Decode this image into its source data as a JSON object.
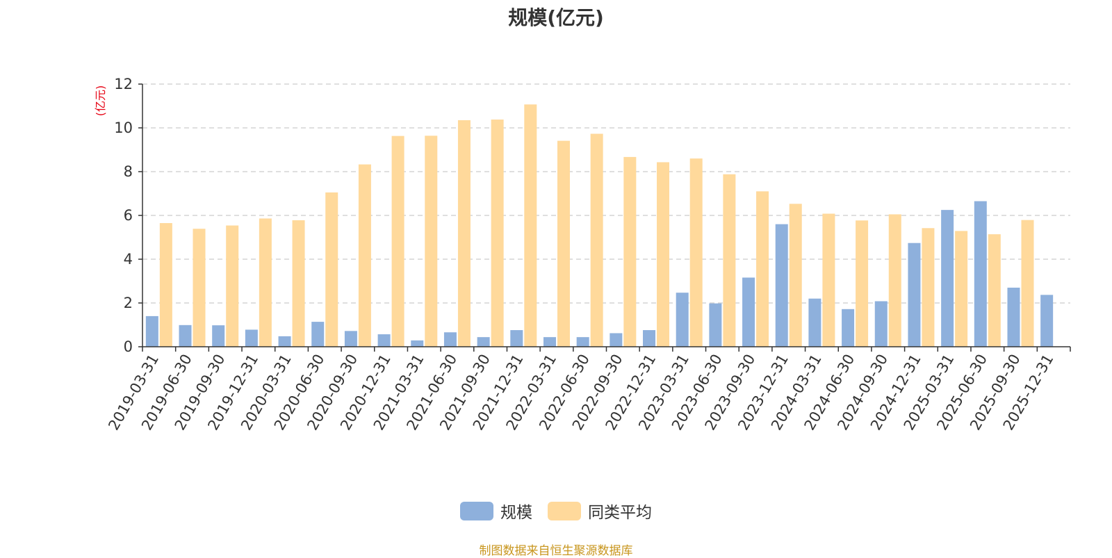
{
  "colors": {
    "series1": "#8eb0dc",
    "series2": "#ffd99b",
    "text": "#333333",
    "axis": "#333333",
    "grid": "#cccccc",
    "unit": "#e60012",
    "source": "#c8961e"
  },
  "chart_data": {
    "type": "bar",
    "title": "规模(亿元)",
    "ylabel": "(亿元)",
    "xlabel": "",
    "ylim": [
      0,
      12
    ],
    "yticks": [
      0,
      2,
      4,
      6,
      8,
      10,
      12
    ],
    "grid": true,
    "legend_position": "bottom",
    "categories": [
      "2019-03-31",
      "2019-06-30",
      "2019-09-30",
      "2019-12-31",
      "2020-03-31",
      "2020-06-30",
      "2020-09-30",
      "2020-12-31",
      "2021-03-31",
      "2021-06-30",
      "2021-09-30",
      "2021-12-31",
      "2022-03-31",
      "2022-06-30",
      "2022-09-30",
      "2022-12-31",
      "2023-03-31",
      "2023-06-30",
      "2023-09-30",
      "2023-12-31",
      "2024-03-31",
      "2024-06-30",
      "2024-09-30",
      "2024-12-31",
      "2025-03-31",
      "2025-06-30",
      "2025-09-30",
      "2025-12-31"
    ],
    "series": [
      {
        "name": "规模",
        "values": [
          1.4,
          0.99,
          0.98,
          0.78,
          0.48,
          1.14,
          0.72,
          0.57,
          0.29,
          0.66,
          0.44,
          0.76,
          0.44,
          0.44,
          0.62,
          0.76,
          2.47,
          1.98,
          3.16,
          5.6,
          2.2,
          1.72,
          2.08,
          4.74,
          6.25,
          6.65,
          2.7,
          2.37
        ]
      },
      {
        "name": "同类平均",
        "values": [
          5.65,
          5.39,
          5.54,
          5.86,
          5.78,
          7.05,
          8.33,
          9.63,
          9.64,
          10.35,
          10.38,
          11.07,
          9.41,
          9.73,
          8.67,
          8.43,
          8.6,
          7.88,
          7.1,
          6.53,
          6.08,
          5.77,
          6.05,
          5.42,
          5.29,
          5.14,
          5.79,
          null
        ]
      }
    ]
  },
  "source_text": "制图数据来自恒生聚源数据库"
}
